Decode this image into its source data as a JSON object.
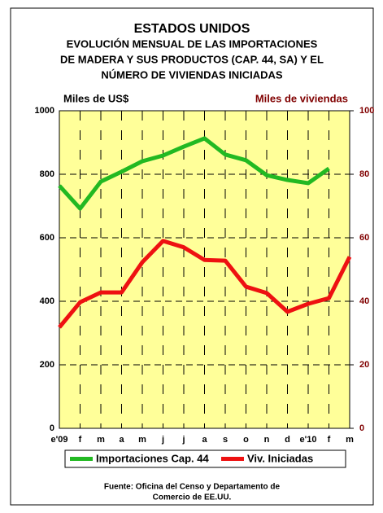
{
  "chart_data": {
    "type": "line",
    "title": "ESTADOS UNIDOS",
    "subtitle": [
      "EVOLUCIÓN MENSUAL DE LAS IMPORTACIONES",
      "DE MADERA Y SUS PRODUCTOS (CAP. 44, SA) Y EL",
      "NÚMERO DE VIVIENDAS INICIADAS"
    ],
    "y_label": "Miles de US$",
    "y2_label": "Miles de viviendas",
    "categories": [
      "e'09",
      "f",
      "m",
      "a",
      "m",
      "j",
      "j",
      "a",
      "s",
      "o",
      "n",
      "d",
      "e'10",
      "f",
      "m"
    ],
    "series": [
      {
        "name": "Importaciones Cap. 44",
        "color": "#22b922",
        "values": [
          764,
          692,
          777,
          808,
          841,
          859,
          887,
          913,
          862,
          844,
          797,
          782,
          772,
          818,
          null
        ]
      },
      {
        "name": "Viv. Iniciadas",
        "color": "#ee1111",
        "axis": "y2",
        "values": [
          31.8,
          39.7,
          42.8,
          42.8,
          52.3,
          59,
          57,
          53,
          52.8,
          44.6,
          42.6,
          36.7,
          39.2,
          41,
          54
        ]
      }
    ],
    "ylim": [
      0,
      1000
    ],
    "yticks": [
      0,
      200,
      400,
      600,
      800,
      1000
    ],
    "y2lim": [
      0,
      100
    ],
    "y2ticks": [
      0,
      20,
      40,
      60,
      80,
      100
    ],
    "grid": true,
    "plot_background": "#ffff99",
    "y2_color": "#800000",
    "source": [
      "Fuente: Oficina del Censo y Departamento de",
      "Comercio de EE.UU."
    ]
  }
}
